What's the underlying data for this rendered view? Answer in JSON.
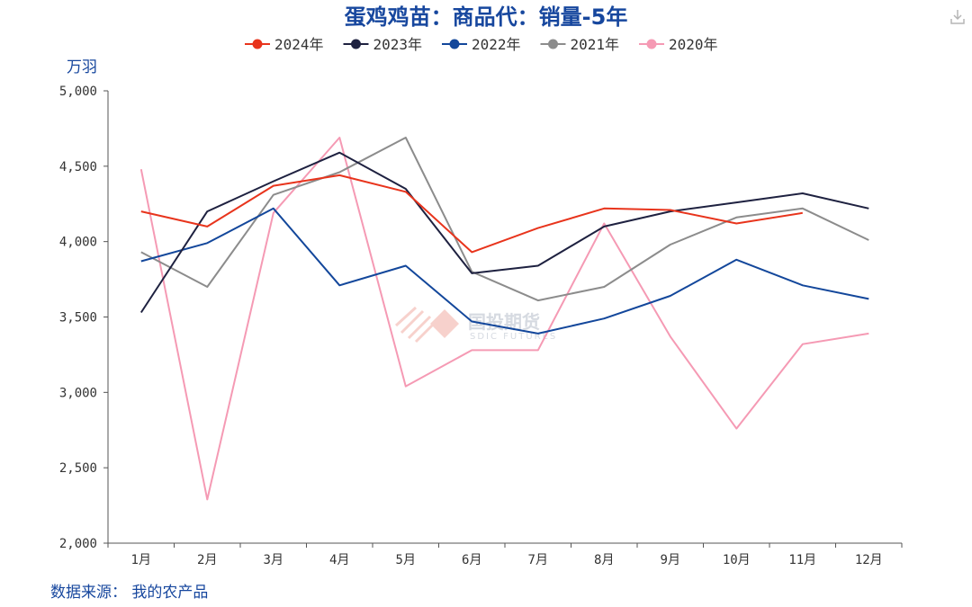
{
  "chart_data": {
    "type": "line",
    "title": "蛋鸡鸡苗：商品代：销量-5年",
    "ylabel": "万羽",
    "ylim": [
      2000,
      5000
    ],
    "yticks": [
      2000,
      2500,
      3000,
      3500,
      4000,
      4500,
      5000
    ],
    "ytick_labels": [
      "2,000",
      "2,500",
      "3,000",
      "3,500",
      "4,000",
      "4,500",
      "5,000"
    ],
    "categories": [
      "1月",
      "2月",
      "3月",
      "4月",
      "5月",
      "6月",
      "7月",
      "8月",
      "9月",
      "10月",
      "11月",
      "12月"
    ],
    "grid": false,
    "legend_position": "top",
    "series": [
      {
        "name": "2024年",
        "color": "#e8341c",
        "values": [
          4200,
          4100,
          4370,
          4440,
          4330,
          3930,
          4090,
          4220,
          4210,
          4120,
          4190,
          null
        ]
      },
      {
        "name": "2023年",
        "color": "#1e2140",
        "values": [
          3530,
          4200,
          4400,
          4590,
          4350,
          3790,
          3840,
          4100,
          4200,
          4260,
          4320,
          4220
        ]
      },
      {
        "name": "2022年",
        "color": "#13479b",
        "values": [
          3870,
          3990,
          4220,
          3710,
          3840,
          3470,
          3390,
          3490,
          3640,
          3880,
          3710,
          3620
        ]
      },
      {
        "name": "2021年",
        "color": "#8c8c8c",
        "values": [
          3930,
          3700,
          4310,
          4460,
          4690,
          3800,
          3610,
          3700,
          3980,
          4160,
          4220,
          4010
        ]
      },
      {
        "name": "2020年",
        "color": "#f59ab4",
        "values": [
          4480,
          2290,
          4190,
          4690,
          3040,
          3280,
          3280,
          4120,
          3370,
          2760,
          3320,
          3390
        ]
      }
    ]
  },
  "source_text": "数据来源：  我的农产品",
  "watermark": {
    "name": "国投期货",
    "sub": "SDIC FUTURES"
  },
  "toolbar": {
    "download_icon": "download-icon"
  }
}
